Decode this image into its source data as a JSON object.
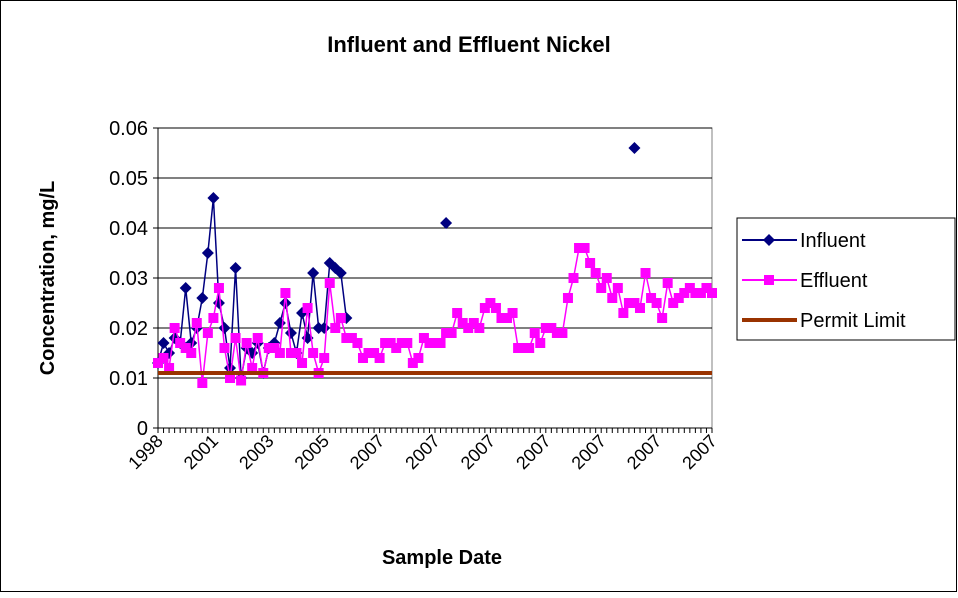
{
  "chart_data": {
    "type": "line",
    "title": "Influent and Effluent Nickel",
    "x_label": "Sample Date",
    "y_label": "Concentration, mg/L",
    "categories": [
      "1998",
      null,
      null,
      null,
      null,
      null,
      null,
      null,
      null,
      null,
      "2001",
      null,
      null,
      null,
      null,
      null,
      null,
      null,
      null,
      null,
      "2003",
      null,
      null,
      null,
      null,
      null,
      null,
      null,
      null,
      null,
      "2005",
      null,
      null,
      null,
      null,
      null,
      null,
      null,
      null,
      null,
      "2007",
      null,
      null,
      null,
      null,
      null,
      null,
      null,
      null,
      null,
      "2007",
      null,
      null,
      null,
      null,
      null,
      null,
      null,
      null,
      null,
      "2007",
      null,
      null,
      null,
      null,
      null,
      null,
      null,
      null,
      null,
      "2007",
      null,
      null,
      null,
      null,
      null,
      null,
      null,
      null,
      null,
      "2007",
      null,
      null,
      null,
      null,
      null,
      null,
      null,
      null,
      null,
      "2007",
      null,
      null,
      null,
      null,
      null,
      null,
      null,
      null,
      null,
      "2007"
    ],
    "series": [
      {
        "name": "Influent",
        "color": "#000080",
        "marker": "diamond",
        "values": [
          0.013,
          0.017,
          0.015,
          0.018,
          0.017,
          0.028,
          0.017,
          0.02,
          0.026,
          0.035,
          0.046,
          0.025,
          0.02,
          0.012,
          0.032,
          0.01,
          0.016,
          0.015,
          0.017,
          0.011,
          0.016,
          0.017,
          0.021,
          0.025,
          0.019,
          0.015,
          0.023,
          0.018,
          0.031,
          0.02,
          0.02,
          0.033,
          0.032,
          0.031,
          0.022,
          null,
          null,
          null,
          null,
          null,
          null,
          null,
          null,
          null,
          null,
          null,
          null,
          null,
          null,
          null,
          null,
          null,
          0.041,
          null,
          null,
          null,
          null,
          null,
          null,
          null,
          null,
          null,
          null,
          null,
          null,
          null,
          null,
          null,
          null,
          null,
          null,
          null,
          null,
          null,
          null,
          null,
          null,
          null,
          null,
          null,
          null,
          null,
          null,
          null,
          null,
          null,
          0.056,
          null,
          null,
          null,
          null,
          null,
          null,
          null,
          null,
          null,
          null,
          null,
          null,
          null,
          null
        ]
      },
      {
        "name": "Effluent",
        "color": "#ff00ff",
        "marker": "square",
        "values": [
          0.013,
          0.014,
          0.012,
          0.02,
          0.017,
          0.016,
          0.015,
          0.021,
          0.009,
          0.019,
          0.022,
          0.028,
          0.016,
          0.01,
          0.018,
          0.0095,
          0.017,
          0.012,
          0.018,
          0.011,
          0.016,
          0.016,
          0.015,
          0.027,
          0.015,
          0.015,
          0.013,
          0.024,
          0.015,
          0.011,
          0.014,
          0.029,
          0.02,
          0.022,
          0.018,
          0.018,
          0.017,
          0.014,
          0.015,
          0.015,
          0.014,
          0.017,
          0.017,
          0.016,
          0.017,
          0.017,
          0.013,
          0.014,
          0.018,
          0.017,
          0.017,
          0.017,
          0.019,
          0.019,
          0.023,
          0.021,
          0.02,
          0.021,
          0.02,
          0.024,
          0.025,
          0.024,
          0.022,
          0.022,
          0.023,
          0.016,
          0.016,
          0.016,
          0.019,
          0.017,
          0.02,
          0.02,
          0.019,
          0.019,
          0.026,
          0.03,
          0.036,
          0.036,
          0.033,
          0.031,
          0.028,
          0.03,
          0.026,
          0.028,
          0.023,
          0.025,
          0.025,
          0.024,
          0.031,
          0.026,
          0.025,
          0.022,
          0.029,
          0.025,
          0.026,
          0.027,
          0.028,
          0.027,
          0.027,
          0.028,
          0.027
        ]
      },
      {
        "name": "Permit Limit",
        "color": "#993300",
        "marker": "none",
        "values": [
          0.011,
          0.011,
          0.011,
          0.011,
          0.011,
          0.011,
          0.011,
          0.011,
          0.011,
          0.011,
          0.011,
          0.011,
          0.011,
          0.011,
          0.011,
          0.011,
          0.011,
          0.011,
          0.011,
          0.011,
          0.011,
          0.011,
          0.011,
          0.011,
          0.011,
          0.011,
          0.011,
          0.011,
          0.011,
          0.011,
          0.011,
          0.011,
          0.011,
          0.011,
          0.011,
          0.011,
          0.011,
          0.011,
          0.011,
          0.011,
          0.011,
          0.011,
          0.011,
          0.011,
          0.011,
          0.011,
          0.011,
          0.011,
          0.011,
          0.011,
          0.011,
          0.011,
          0.011,
          0.011,
          0.011,
          0.011,
          0.011,
          0.011,
          0.011,
          0.011,
          0.011,
          0.011,
          0.011,
          0.011,
          0.011,
          0.011,
          0.011,
          0.011,
          0.011,
          0.011,
          0.011,
          0.011,
          0.011,
          0.011,
          0.011,
          0.011,
          0.011,
          0.011,
          0.011,
          0.011,
          0.011,
          0.011,
          0.011,
          0.011,
          0.011,
          0.011,
          0.011,
          0.011,
          0.011,
          0.011,
          0.011,
          0.011,
          0.011,
          0.011,
          0.011,
          0.011,
          0.011,
          0.011,
          0.011,
          0.011,
          0.011
        ]
      }
    ],
    "ylim": [
      0,
      0.06
    ],
    "yticks": [
      0,
      0.01,
      0.02,
      0.03,
      0.04,
      0.05,
      0.06
    ],
    "grid": true,
    "legend": "right"
  }
}
